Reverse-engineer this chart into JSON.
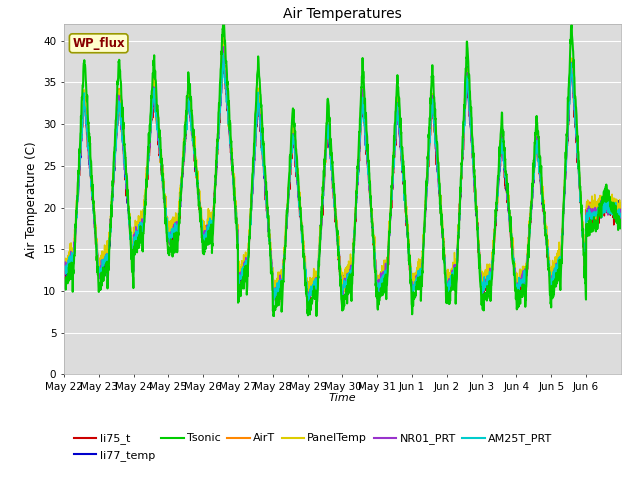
{
  "title": "Air Temperatures",
  "ylabel": "Air Temperature (C)",
  "xlabel": "Time",
  "ylim": [
    0,
    42
  ],
  "yticks": [
    0,
    5,
    10,
    15,
    20,
    25,
    30,
    35,
    40
  ],
  "background_color": "#dcdcdc",
  "plot_bg": "#dcdcdc",
  "series_colors": {
    "li75_t": "#cc0000",
    "li77_temp": "#0000cc",
    "Tsonic": "#00cc00",
    "AirT": "#ff8800",
    "PanelTemp": "#ddcc00",
    "NR01_PRT": "#9933cc",
    "AM25T_PRT": "#00cccc"
  },
  "legend_label": "WP_flux",
  "n_days": 16,
  "pts_per_day": 144,
  "date_labels": [
    "May 22",
    "May 23",
    "May 24",
    "May 25",
    "May 26",
    "May 27",
    "May 28",
    "May 29",
    "May 30",
    "May 31",
    "Jun 1",
    "Jun 2",
    "Jun 3",
    "Jun 4",
    "Jun 5",
    "Jun 6"
  ],
  "day_mins": [
    12,
    12,
    16,
    16,
    16,
    11,
    9,
    9,
    10,
    10,
    10,
    10,
    10,
    10,
    11,
    19
  ],
  "day_maxs": [
    33,
    33,
    34,
    33,
    38,
    33,
    29,
    30,
    33,
    32,
    33,
    36,
    28,
    28,
    37,
    20
  ],
  "tsonic_extra_peak": [
    5,
    5,
    4,
    3,
    5,
    5,
    3,
    3,
    4,
    4,
    4,
    4,
    3,
    3,
    5,
    2
  ]
}
